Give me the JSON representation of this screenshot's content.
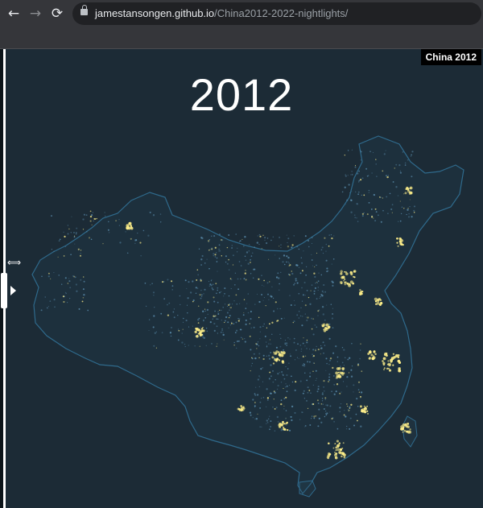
{
  "browser": {
    "url_host": "jamestansongen.github.io",
    "url_path": "/China2012-2022-nightlights/",
    "back_icon": "arrow-left-icon",
    "forward_icon": "arrow-right-icon",
    "reload_icon": "reload-icon",
    "lock_icon": "lock-icon"
  },
  "page": {
    "year": "2012",
    "layer_label": "China 2012",
    "colors": {
      "background": "#1c2b36",
      "outline": "#2f6a8c",
      "light_dim": "#5c8fb0",
      "light_bright": "#fff08a"
    }
  }
}
